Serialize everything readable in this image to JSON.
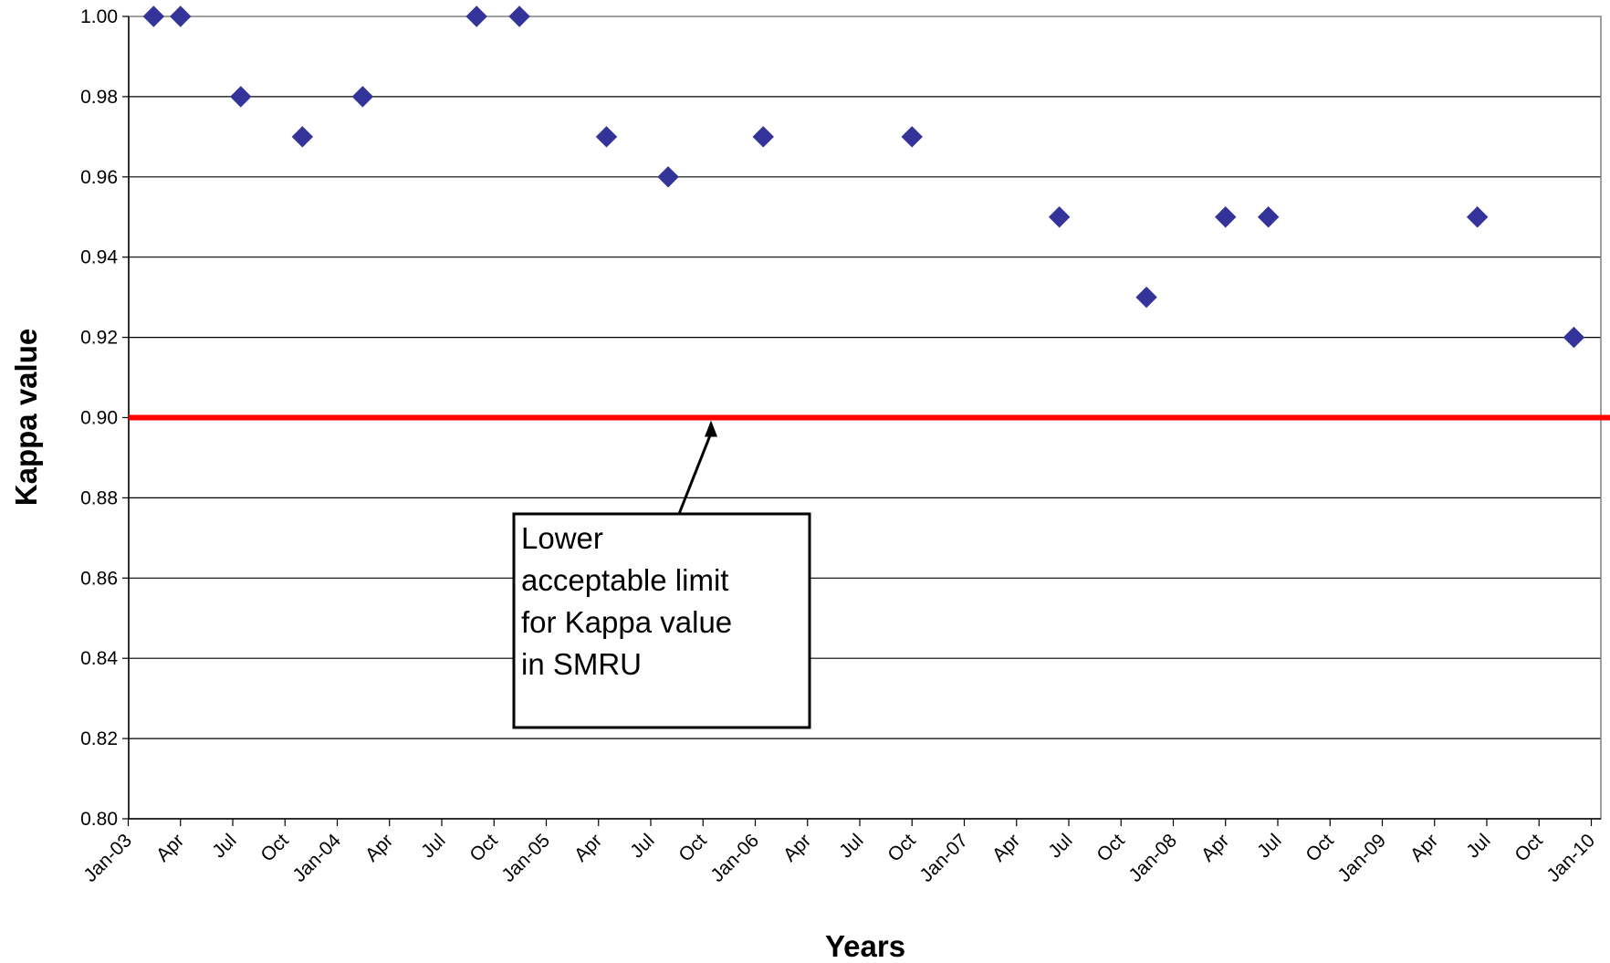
{
  "chart_data": {
    "type": "scatter",
    "title": "",
    "xlabel": "Years",
    "ylabel": "Kappa value",
    "ylim": [
      0.8,
      1.0
    ],
    "y_ticks": [
      "0.80",
      "0.82",
      "0.84",
      "0.86",
      "0.88",
      "0.90",
      "0.92",
      "0.94",
      "0.96",
      "0.98",
      "1.00"
    ],
    "x_range": [
      "2003-01",
      "2010-01"
    ],
    "x_ticks": [
      "Jan-03",
      "Apr",
      "Jul",
      "Oct",
      "Jan-04",
      "Apr",
      "Jul",
      "Oct",
      "Jan-05",
      "Apr",
      "Jul",
      "Oct",
      "Jan-06",
      "Apr",
      "Jul",
      "Oct",
      "Jan-07",
      "Apr",
      "Jul",
      "Oct",
      "Jan-08",
      "Apr",
      "Jul",
      "Oct",
      "Jan-09",
      "Apr",
      "Jul",
      "Oct",
      "Jan-10"
    ],
    "grid": "horizontal",
    "marker": "diamond",
    "colors": {
      "points": "#333399",
      "limit_line": "#ff0000"
    },
    "points": [
      {
        "x": "2003-02-15",
        "y": 1.0
      },
      {
        "x": "2003-04-01",
        "y": 1.0
      },
      {
        "x": "2003-07-15",
        "y": 0.98
      },
      {
        "x": "2003-11-01",
        "y": 0.97
      },
      {
        "x": "2004-02-15",
        "y": 0.98
      },
      {
        "x": "2004-09-01",
        "y": 1.0
      },
      {
        "x": "2004-11-15",
        "y": 1.0
      },
      {
        "x": "2005-04-15",
        "y": 0.97
      },
      {
        "x": "2005-08-01",
        "y": 0.96
      },
      {
        "x": "2006-01-15",
        "y": 0.97
      },
      {
        "x": "2006-10-01",
        "y": 0.97
      },
      {
        "x": "2007-06-15",
        "y": 0.95
      },
      {
        "x": "2007-11-15",
        "y": 0.93
      },
      {
        "x": "2008-04-01",
        "y": 0.95
      },
      {
        "x": "2008-06-15",
        "y": 0.95
      },
      {
        "x": "2009-06-15",
        "y": 0.95
      },
      {
        "x": "2009-12-01",
        "y": 0.92
      }
    ],
    "reference_line": {
      "y": 0.9
    },
    "annotation": {
      "lines": [
        "Lower",
        "acceptable limit",
        "for Kappa value",
        "in SMRU"
      ],
      "arrow_target": {
        "x": "2005-10-15",
        "y": 0.9
      }
    }
  }
}
